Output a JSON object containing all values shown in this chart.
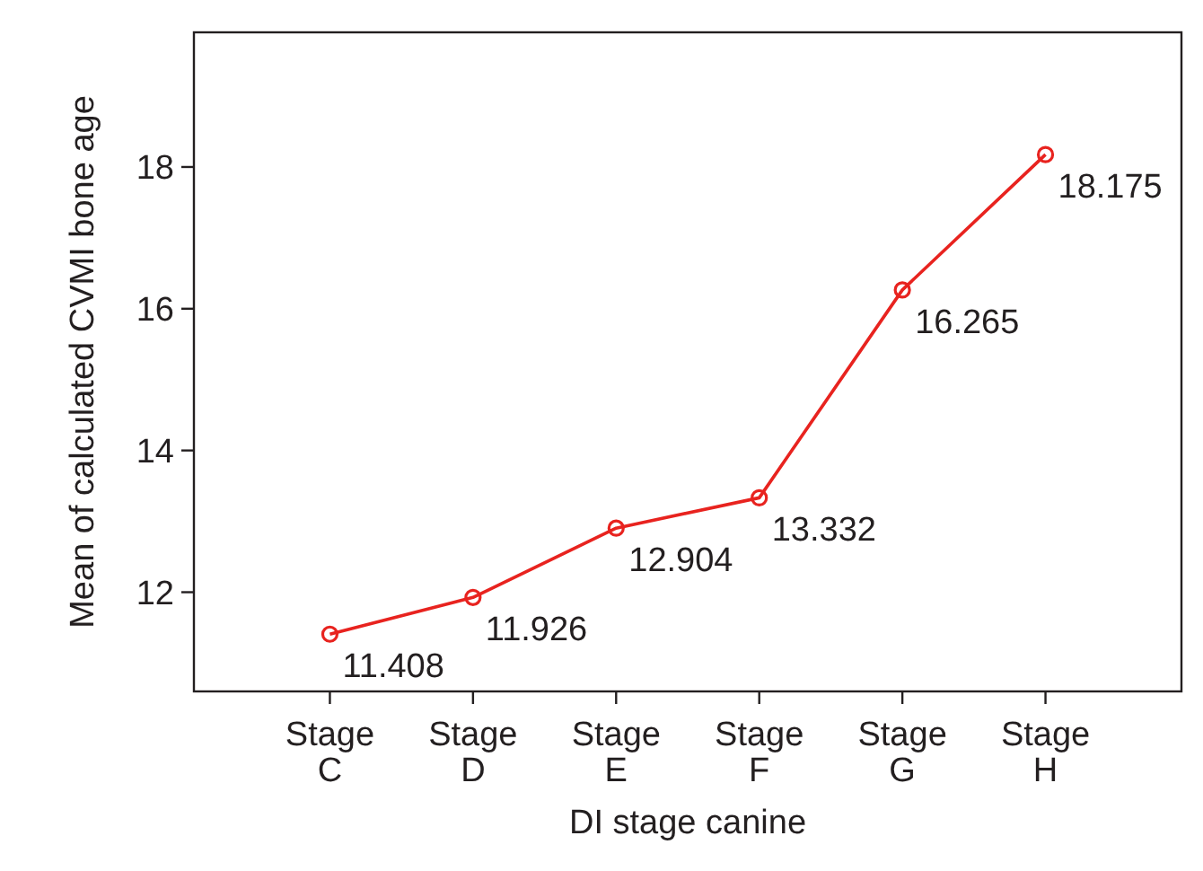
{
  "chart_data": {
    "type": "line",
    "xlabel": "DI stage canine",
    "ylabel": "Mean of calculated CVMI bone age",
    "categories": [
      "Stage C",
      "Stage D",
      "Stage E",
      "Stage F",
      "Stage G",
      "Stage H"
    ],
    "series": [
      {
        "color": "#e8231f",
        "values": [
          11.408,
          11.926,
          12.904,
          13.332,
          16.265,
          18.175
        ]
      }
    ],
    "ylim": [
      10.6,
      19.9
    ],
    "yticks": [
      12,
      14,
      16,
      18
    ],
    "marker": "circle",
    "line_style": "solid",
    "data_labels": true
  }
}
